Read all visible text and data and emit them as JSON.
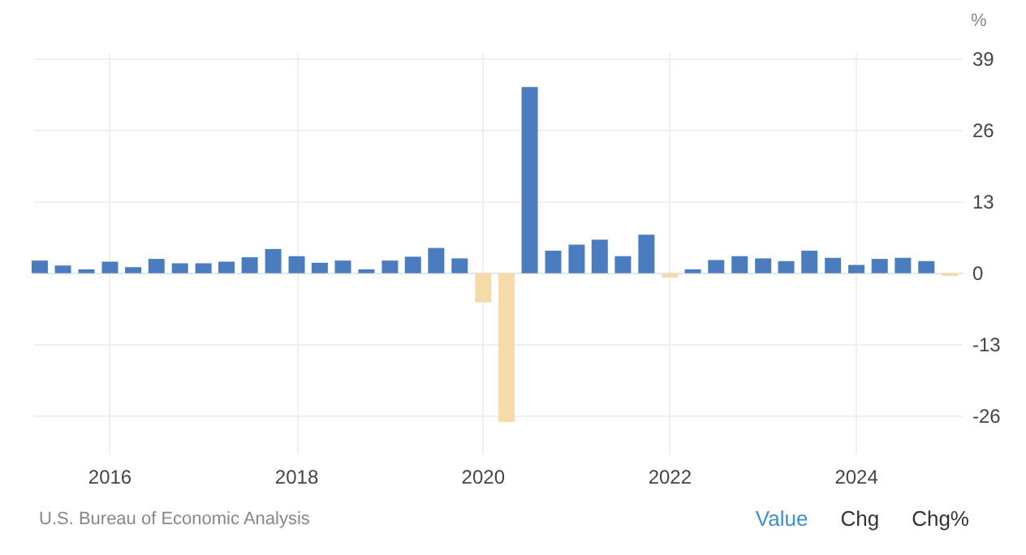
{
  "chart_data": {
    "type": "bar",
    "ylabel": "%",
    "x": [
      "2015-04",
      "2015-07",
      "2015-10",
      "2016-01",
      "2016-04",
      "2016-07",
      "2016-10",
      "2017-01",
      "2017-04",
      "2017-07",
      "2017-10",
      "2018-01",
      "2018-04",
      "2018-07",
      "2018-10",
      "2019-01",
      "2019-04",
      "2019-07",
      "2019-10",
      "2020-01",
      "2020-04",
      "2020-07",
      "2020-10",
      "2021-01",
      "2021-04",
      "2021-07",
      "2021-10",
      "2022-01",
      "2022-04",
      "2022-07",
      "2022-10",
      "2023-01",
      "2023-04",
      "2023-07",
      "2023-10",
      "2024-01",
      "2024-04",
      "2024-07",
      "2024-10",
      "2025-01"
    ],
    "values": [
      2.3,
      1.4,
      0.7,
      2.1,
      1.1,
      2.6,
      1.8,
      1.8,
      2.1,
      2.9,
      4.4,
      3.1,
      1.9,
      2.3,
      0.7,
      2.3,
      3.0,
      4.6,
      2.7,
      -5.3,
      -27.1,
      33.9,
      4.1,
      5.2,
      6.1,
      3.1,
      7.0,
      -0.8,
      0.7,
      2.4,
      3.1,
      2.7,
      2.2,
      4.1,
      2.8,
      1.5,
      2.6,
      2.8,
      2.2,
      -0.5
    ],
    "colors": [
      "#4a7cbf",
      "#4a7cbf",
      "#4a7cbf",
      "#4a7cbf",
      "#4a7cbf",
      "#4a7cbf",
      "#4a7cbf",
      "#4a7cbf",
      "#4a7cbf",
      "#4a7cbf",
      "#4a7cbf",
      "#4a7cbf",
      "#4a7cbf",
      "#4a7cbf",
      "#4a7cbf",
      "#4a7cbf",
      "#4a7cbf",
      "#4a7cbf",
      "#4a7cbf",
      "#f5dbaa",
      "#f5dbaa",
      "#4a7cbf",
      "#4a7cbf",
      "#4a7cbf",
      "#4a7cbf",
      "#4a7cbf",
      "#4a7cbf",
      "#f5dbaa",
      "#4a7cbf",
      "#4a7cbf",
      "#4a7cbf",
      "#4a7cbf",
      "#4a7cbf",
      "#4a7cbf",
      "#4a7cbf",
      "#4a7cbf",
      "#4a7cbf",
      "#4a7cbf",
      "#4a7cbf",
      "#f5dbaa"
    ],
    "xlim": [
      "2015-03-10",
      "2025-02-20"
    ],
    "xticks": [
      "2016",
      "2018",
      "2020",
      "2022",
      "2024"
    ],
    "ylim": [
      -33,
      40
    ],
    "yticks": [
      -26,
      -13,
      0,
      13,
      26,
      39
    ],
    "grid": true,
    "annotations": [
      "U.S. Bureau of Economic Analysis",
      "Value",
      "Chg",
      "Chg%"
    ]
  }
}
